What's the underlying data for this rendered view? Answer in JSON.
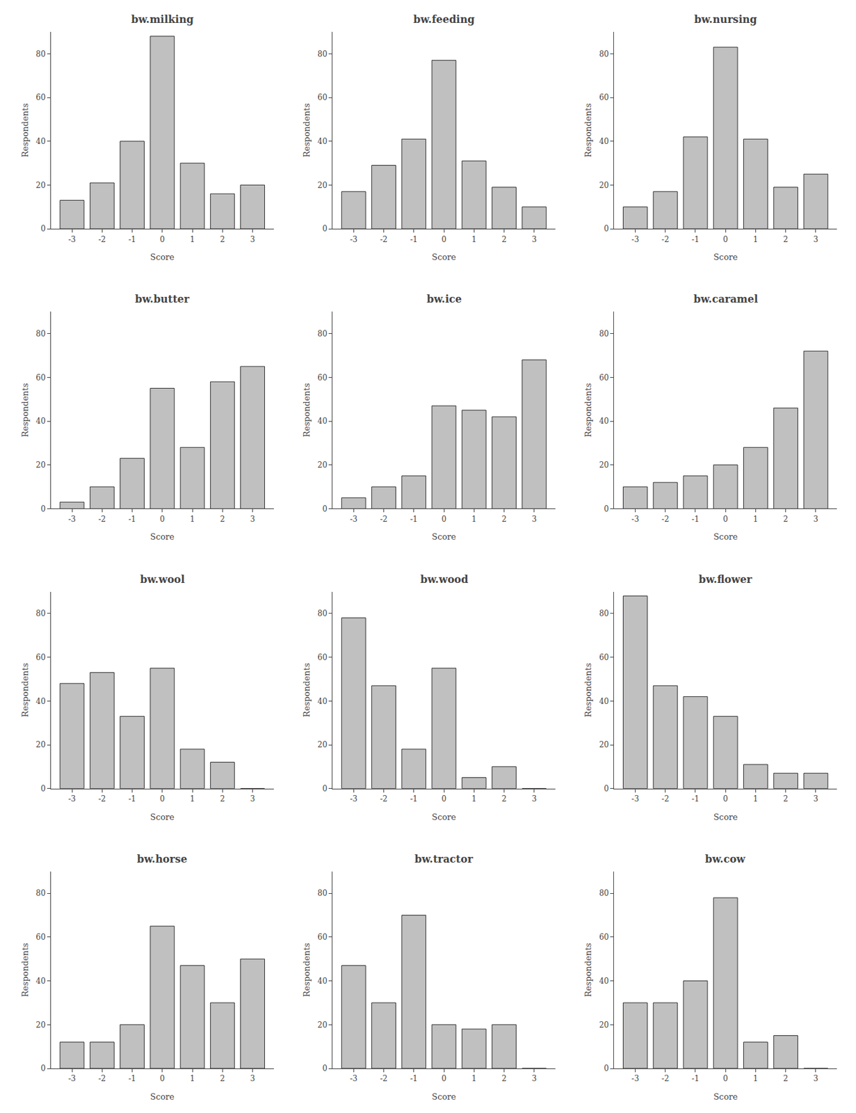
{
  "chart_data": [
    {
      "type": "bar",
      "title": "bw.milking",
      "x": [
        -3,
        -2,
        -1,
        0,
        1,
        2,
        3
      ],
      "values": [
        13,
        21,
        40,
        88,
        30,
        16,
        20
      ],
      "color": "#c0c0c0",
      "xlabel": "Score",
      "ylabel": "Respondents",
      "xlim": [
        -3.7,
        3.7
      ],
      "ylim": [
        0,
        90
      ],
      "xticks": [
        -3,
        -2,
        -1,
        0,
        1,
        2,
        3
      ],
      "yticks": [
        0,
        20,
        40,
        60,
        80
      ],
      "grid": false
    },
    {
      "type": "bar",
      "title": "bw.feeding",
      "x": [
        -3,
        -2,
        -1,
        0,
        1,
        2,
        3
      ],
      "values": [
        17,
        29,
        41,
        77,
        31,
        19,
        10
      ],
      "color": "#c0c0c0",
      "xlabel": "Score",
      "ylabel": "Respondents",
      "xlim": [
        -3.7,
        3.7
      ],
      "ylim": [
        0,
        90
      ],
      "xticks": [
        -3,
        -2,
        -1,
        0,
        1,
        2,
        3
      ],
      "yticks": [
        0,
        20,
        40,
        60,
        80
      ],
      "grid": false
    },
    {
      "type": "bar",
      "title": "bw.nursing",
      "x": [
        -3,
        -2,
        -1,
        0,
        1,
        2,
        3
      ],
      "values": [
        10,
        17,
        42,
        83,
        41,
        19,
        25
      ],
      "color": "#c0c0c0",
      "xlabel": "Score",
      "ylabel": "Respondents",
      "xlim": [
        -3.7,
        3.7
      ],
      "ylim": [
        0,
        90
      ],
      "xticks": [
        -3,
        -2,
        -1,
        0,
        1,
        2,
        3
      ],
      "yticks": [
        0,
        20,
        40,
        60,
        80
      ],
      "grid": false
    },
    {
      "type": "bar",
      "title": "bw.butter",
      "x": [
        -3,
        -2,
        -1,
        0,
        1,
        2,
        3
      ],
      "values": [
        3,
        10,
        23,
        55,
        28,
        58,
        65
      ],
      "color": "#c0c0c0",
      "xlabel": "Score",
      "ylabel": "Respondents",
      "xlim": [
        -3.7,
        3.7
      ],
      "ylim": [
        0,
        90
      ],
      "xticks": [
        -3,
        -2,
        -1,
        0,
        1,
        2,
        3
      ],
      "yticks": [
        0,
        20,
        40,
        60,
        80
      ],
      "grid": false
    },
    {
      "type": "bar",
      "title": "bw.ice",
      "x": [
        -3,
        -2,
        -1,
        0,
        1,
        2,
        3
      ],
      "values": [
        5,
        10,
        15,
        47,
        45,
        42,
        68
      ],
      "color": "#c0c0c0",
      "xlabel": "Score",
      "ylabel": "Respondents",
      "xlim": [
        -3.7,
        3.7
      ],
      "ylim": [
        0,
        90
      ],
      "xticks": [
        -3,
        -2,
        -1,
        0,
        1,
        2,
        3
      ],
      "yticks": [
        0,
        20,
        40,
        60,
        80
      ],
      "grid": false
    },
    {
      "type": "bar",
      "title": "bw.caramel",
      "x": [
        -3,
        -2,
        -1,
        0,
        1,
        2,
        3
      ],
      "values": [
        10,
        12,
        15,
        20,
        28,
        46,
        72
      ],
      "color": "#c0c0c0",
      "xlabel": "Score",
      "ylabel": "Respondents",
      "xlim": [
        -3.7,
        3.7
      ],
      "ylim": [
        0,
        90
      ],
      "xticks": [
        -3,
        -2,
        -1,
        0,
        1,
        2,
        3
      ],
      "yticks": [
        0,
        20,
        40,
        60,
        80
      ],
      "grid": false
    },
    {
      "type": "bar",
      "title": "bw.wool",
      "x": [
        -3,
        -2,
        -1,
        0,
        1,
        2,
        3
      ],
      "values": [
        48,
        53,
        33,
        55,
        18,
        12,
        0
      ],
      "color": "#c0c0c0",
      "xlabel": "Score",
      "ylabel": "Respondents",
      "xlim": [
        -3.7,
        3.7
      ],
      "ylim": [
        0,
        90
      ],
      "xticks": [
        -3,
        -2,
        -1,
        0,
        1,
        2,
        3
      ],
      "yticks": [
        0,
        20,
        40,
        60,
        80
      ],
      "grid": false
    },
    {
      "type": "bar",
      "title": "bw.wood",
      "x": [
        -3,
        -2,
        -1,
        0,
        1,
        2,
        3
      ],
      "values": [
        78,
        47,
        18,
        55,
        5,
        10,
        0
      ],
      "color": "#c0c0c0",
      "xlabel": "Score",
      "ylabel": "Respondents",
      "xlim": [
        -3.7,
        3.7
      ],
      "ylim": [
        0,
        90
      ],
      "xticks": [
        -3,
        -2,
        -1,
        0,
        1,
        2,
        3
      ],
      "yticks": [
        0,
        20,
        40,
        60,
        80
      ],
      "grid": false
    },
    {
      "type": "bar",
      "title": "bw.flower",
      "x": [
        -3,
        -2,
        -1,
        0,
        1,
        2,
        3
      ],
      "values": [
        88,
        47,
        42,
        33,
        11,
        7,
        7
      ],
      "color": "#c0c0c0",
      "xlabel": "Score",
      "ylabel": "Respondents",
      "xlim": [
        -3.7,
        3.7
      ],
      "ylim": [
        0,
        90
      ],
      "xticks": [
        -3,
        -2,
        -1,
        0,
        1,
        2,
        3
      ],
      "yticks": [
        0,
        20,
        40,
        60,
        80
      ],
      "grid": false
    },
    {
      "type": "bar",
      "title": "bw.horse",
      "x": [
        -3,
        -2,
        -1,
        0,
        1,
        2,
        3
      ],
      "values": [
        12,
        12,
        20,
        65,
        47,
        30,
        50
      ],
      "color": "#c0c0c0",
      "xlabel": "Score",
      "ylabel": "Respondents",
      "xlim": [
        -3.7,
        3.7
      ],
      "ylim": [
        0,
        90
      ],
      "xticks": [
        -3,
        -2,
        -1,
        0,
        1,
        2,
        3
      ],
      "yticks": [
        0,
        20,
        40,
        60,
        80
      ],
      "grid": false
    },
    {
      "type": "bar",
      "title": "bw.tractor",
      "x": [
        -3,
        -2,
        -1,
        0,
        1,
        2,
        3
      ],
      "values": [
        47,
        30,
        70,
        20,
        18,
        20,
        0
      ],
      "color": "#c0c0c0",
      "xlabel": "Score",
      "ylabel": "Respondents",
      "xlim": [
        -3.7,
        3.7
      ],
      "ylim": [
        0,
        90
      ],
      "xticks": [
        -3,
        -2,
        -1,
        0,
        1,
        2,
        3
      ],
      "yticks": [
        0,
        20,
        40,
        60,
        80
      ],
      "grid": false
    },
    {
      "type": "bar",
      "title": "bw.cow",
      "x": [
        -3,
        -2,
        -1,
        0,
        1,
        2,
        3
      ],
      "values": [
        30,
        30,
        40,
        78,
        12,
        15,
        0
      ],
      "color": "#c0c0c0",
      "xlabel": "Score",
      "ylabel": "Respondents",
      "xlim": [
        -3.7,
        3.7
      ],
      "ylim": [
        0,
        90
      ],
      "xticks": [
        -3,
        -2,
        -1,
        0,
        1,
        2,
        3
      ],
      "yticks": [
        0,
        20,
        40,
        60,
        80
      ],
      "grid": false
    }
  ]
}
